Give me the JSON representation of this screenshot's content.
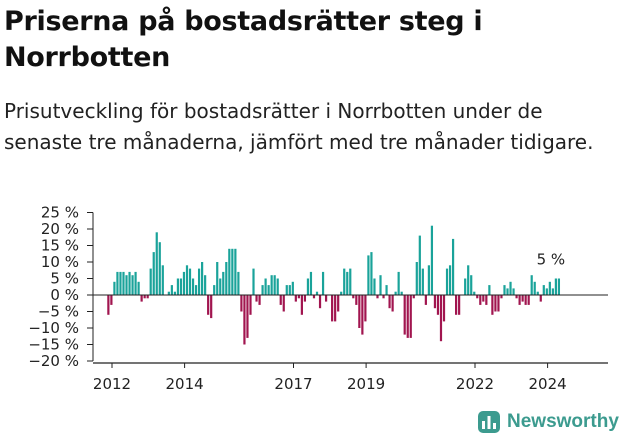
{
  "title": "Priserna på bostadsrätter steg i Norrbotten",
  "subtitle": "Prisutveckling för bostadsrätter i Norrbotten under de senaste tre månaderna, jämfört med tre månader tidigare.",
  "brand": {
    "name": "Newsworthy"
  },
  "colors": {
    "positive": "#1aa39a",
    "negative": "#a1154f",
    "axis": "#222222",
    "logo": "#3c9b8f"
  },
  "chart_data": {
    "type": "bar",
    "title": "Priserna på bostadsrätter steg i Norrbotten",
    "ylabel": "",
    "xlabel": "",
    "ylim": [
      -20,
      25
    ],
    "y_ticks": [
      25,
      20,
      15,
      10,
      5,
      0,
      -5,
      -10,
      -15,
      -20
    ],
    "y_tick_labels": [
      "25 %",
      "20 %",
      "15 %",
      "10 %",
      "5 %",
      "0 %",
      "−5 %",
      "−10 %",
      "−15 %",
      "−20 %"
    ],
    "x_ticks": [
      {
        "label": "2012",
        "year": 2012
      },
      {
        "label": "2014",
        "year": 2014
      },
      {
        "label": "2017",
        "year": 2017
      },
      {
        "label": "2019",
        "year": 2019
      },
      {
        "label": "2022",
        "year": 2022
      },
      {
        "label": "2024",
        "year": 2024
      }
    ],
    "start_year": 2011.9,
    "step_years": 0.0833,
    "annotation": {
      "label": "5 %",
      "value": 5
    },
    "values": [
      -6,
      -3,
      4,
      7,
      7,
      7,
      6,
      7,
      6,
      7,
      4,
      -2,
      -1,
      -1,
      8,
      13,
      19,
      16,
      9,
      0,
      1,
      3,
      1,
      5,
      5,
      7,
      9,
      8,
      5,
      3,
      8,
      10,
      6,
      -6,
      -7,
      3,
      10,
      5,
      7,
      10,
      14,
      14,
      14,
      7,
      -5,
      -15,
      -13,
      -6,
      8,
      -2,
      -3,
      3,
      5,
      3,
      6,
      6,
      5,
      -3,
      -5,
      3,
      3,
      4,
      -2,
      -1,
      -6,
      -2,
      5,
      7,
      -1,
      1,
      -4,
      7,
      -2,
      0,
      -8,
      -8,
      -5,
      1,
      8,
      7,
      8,
      -1,
      -3,
      -10,
      -12,
      -8,
      12,
      13,
      5,
      -1,
      6,
      -1,
      3,
      -4,
      -5,
      1,
      7,
      1,
      -12,
      -13,
      -13,
      -1,
      10,
      18,
      8,
      -3,
      9,
      21,
      -4,
      -6,
      -14,
      -8,
      8,
      9,
      17,
      -6,
      -6,
      0,
      5,
      9,
      6,
      1,
      -1,
      -3,
      -2,
      -3,
      3,
      -6,
      -5,
      -5,
      -1,
      3,
      2,
      4,
      2,
      -1,
      -3,
      -2,
      -3,
      -3,
      6,
      4,
      1,
      -2,
      3,
      2,
      4,
      2,
      5,
      5
    ]
  }
}
